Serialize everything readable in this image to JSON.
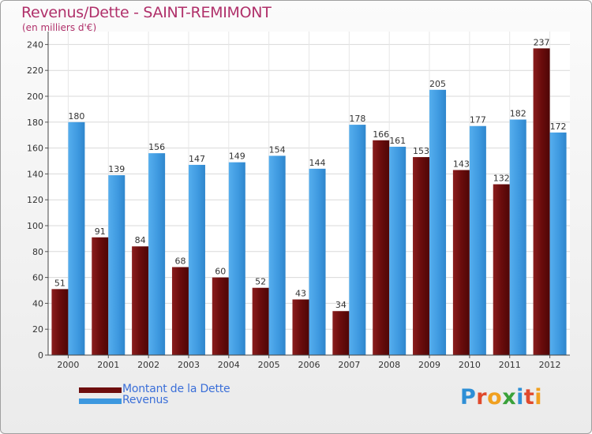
{
  "title": "Revenus/Dette - SAINT-REMIMONT",
  "subtitle": "(en milliers d'€)",
  "brand": {
    "letters": [
      "P",
      "r",
      "o",
      "x",
      "i",
      "t",
      "i"
    ]
  },
  "colors": {
    "dette": "#6e0e0e",
    "revenus": "#3d98df",
    "title": "#b0306a",
    "legend_text": "#3b6fd8"
  },
  "legend": [
    {
      "label": "Montant de la Dette",
      "color": "#6e0e0e"
    },
    {
      "label": "Revenus",
      "color": "#3d98df"
    }
  ],
  "chart_data": {
    "type": "bar",
    "title": "Revenus/Dette - SAINT-REMIMONT",
    "ylabel": "(en milliers d'€)",
    "xlabel": "",
    "categories": [
      "2000",
      "2001",
      "2002",
      "2003",
      "2004",
      "2005",
      "2006",
      "2007",
      "2008",
      "2009",
      "2010",
      "2011",
      "2012"
    ],
    "series": [
      {
        "name": "Montant de la Dette",
        "values": [
          51,
          91,
          84,
          68,
          60,
          52,
          43,
          34,
          166,
          153,
          143,
          132,
          237
        ]
      },
      {
        "name": "Revenus",
        "values": [
          180,
          139,
          156,
          147,
          149,
          154,
          144,
          178,
          161,
          205,
          177,
          182,
          172
        ]
      }
    ],
    "ylim": [
      0,
      250
    ],
    "yticks": [
      0,
      20,
      40,
      60,
      80,
      100,
      120,
      140,
      160,
      180,
      200,
      220,
      240
    ],
    "grid": true
  }
}
